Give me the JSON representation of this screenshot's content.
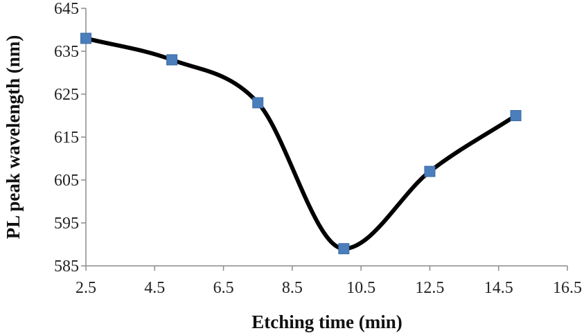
{
  "chart_data": {
    "type": "line",
    "title": "",
    "xlabel": "Etching time (min)",
    "ylabel": "PL peak wavelength (nm)",
    "xlim": [
      2.5,
      16.5
    ],
    "ylim": [
      585,
      645
    ],
    "xticks": [
      2.5,
      4.5,
      6.5,
      8.5,
      10.5,
      12.5,
      14.5,
      16.5
    ],
    "yticks": [
      585,
      595,
      605,
      615,
      625,
      635,
      645
    ],
    "xtick_labels": [
      "2.5",
      "4.5",
      "6.5",
      "8.5",
      "10.5",
      "12.5",
      "14.5",
      "16.5"
    ],
    "ytick_labels": [
      "585",
      "595",
      "605",
      "615",
      "625",
      "635",
      "645"
    ],
    "grid": false,
    "smooth": true,
    "series": [
      {
        "x": [
          2.5,
          5,
          7.5,
          10,
          12.5,
          15
        ],
        "y": [
          638,
          633,
          623,
          589,
          607,
          620
        ],
        "line_color": "#000000",
        "marker": "square",
        "marker_color": "#4a7ebb"
      }
    ]
  }
}
